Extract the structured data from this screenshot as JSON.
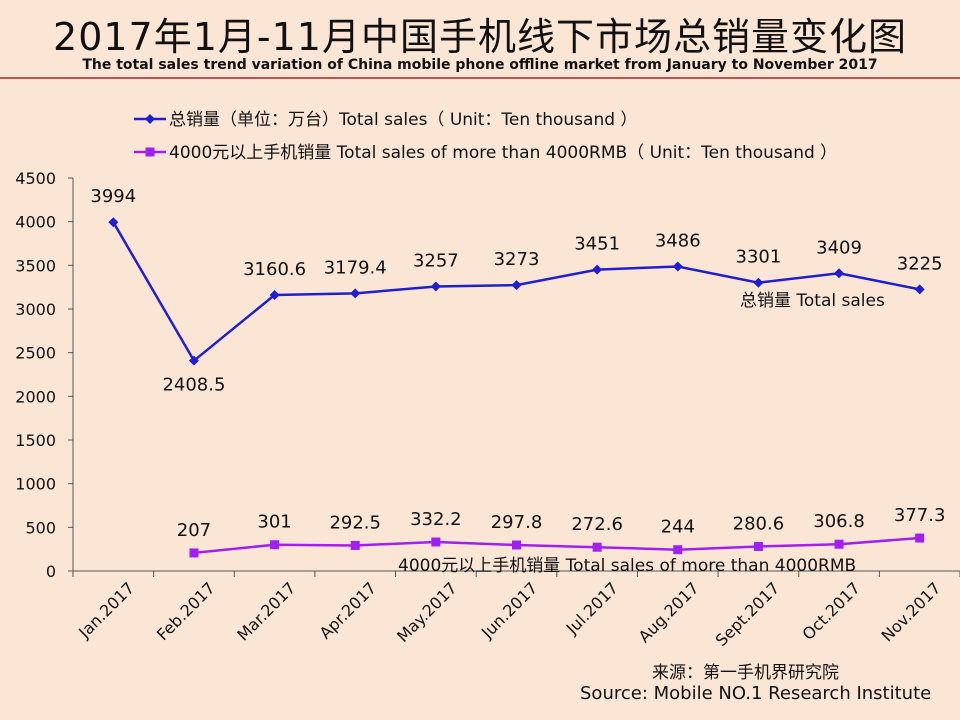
{
  "title": {
    "cn": "2017年1月-11月中国手机线下市场总销量变化图",
    "en": "The total sales trend variation of China mobile phone offline market from January to November 2017"
  },
  "source": {
    "cn": "来源：第一手机界研究院",
    "en": "Source: Mobile NO.1 Research Institute"
  },
  "chart_data": {
    "type": "line",
    "categories": [
      "Jan.2017",
      "Feb.2017",
      "Mar.2017",
      "Apr.2017",
      "May.2017",
      "Jun.2017",
      "Jul.2017",
      "Aug.2017",
      "Sept.2017",
      "Oct.2017",
      "Nov.2017"
    ],
    "ylim": [
      0,
      4500
    ],
    "yticks": [
      0,
      500,
      1000,
      1500,
      2000,
      2500,
      3000,
      3500,
      4000,
      4500
    ],
    "grid": false,
    "legend_position": "top-left",
    "series": [
      {
        "name": "总销量（单位：万台）Total sales（ Unit：Ten thousand ）",
        "label": "总销量 Total sales",
        "color": "#1f1fd1",
        "marker": "diamond",
        "values": [
          3994,
          2408.5,
          3160.6,
          3179.4,
          3257,
          3273,
          3451,
          3486,
          3301,
          3409,
          3225
        ],
        "data_labels": [
          "3994",
          "2408.5",
          "3160.6",
          "3179.4",
          "3257",
          "3273",
          "3451",
          "3486",
          "3301",
          "3409",
          "3225"
        ]
      },
      {
        "name": "4000元以上手机销量 Total sales of more than 4000RMB（ Unit：Ten thousand ）",
        "label": "4000元以上手机销量 Total sales of more than 4000RMB",
        "color": "#a020f0",
        "marker": "square",
        "values": [
          null,
          207,
          301,
          292.5,
          332.2,
          297.8,
          272.6,
          244,
          280.6,
          306.8,
          377.3
        ],
        "data_labels": [
          "",
          "207",
          "301",
          "292.5",
          "332.2",
          "297.8",
          "272.6",
          "244",
          "280.6",
          "306.8",
          "377.3"
        ]
      }
    ]
  }
}
